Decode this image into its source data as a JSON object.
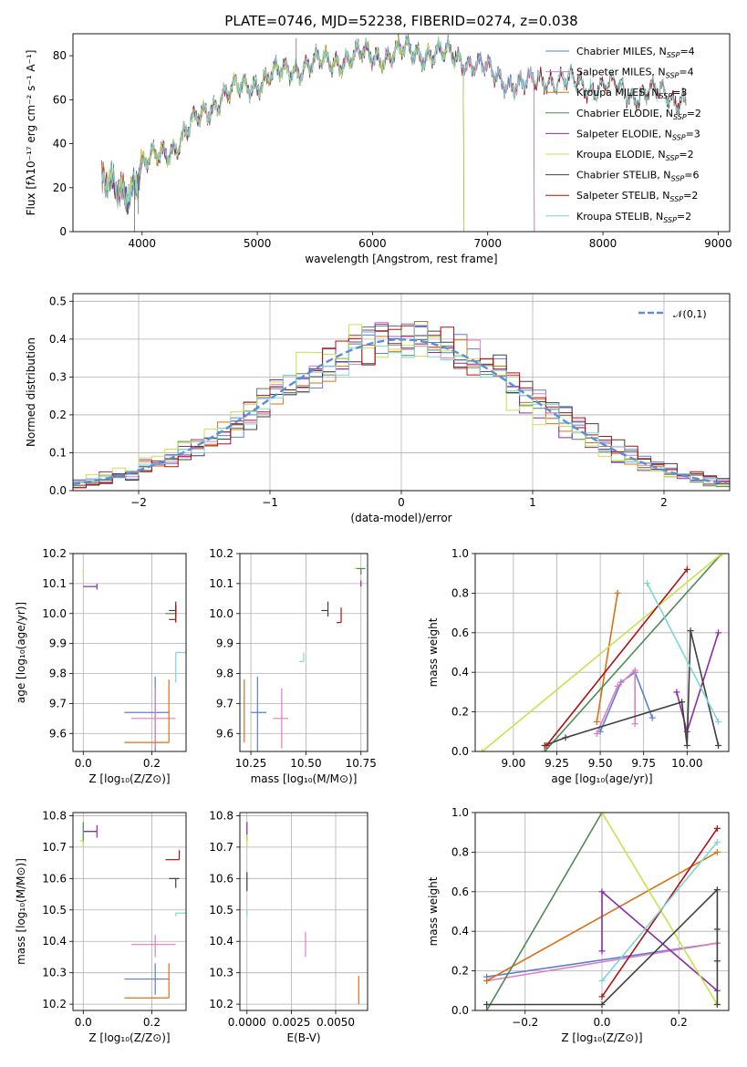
{
  "chart_data": [
    {
      "type": "line",
      "title": "PLATE=0746, MJD=52238, FIBERID=0274, z=0.038",
      "xlabel": "wavelength [Angstrom, rest frame]",
      "ylabel": "Flux [fλ10⁻¹⁷ erg cm⁻² s⁻¹ A⁻¹]",
      "xlim": [
        3400,
        9100
      ],
      "ylim": [
        0,
        90
      ],
      "xticks": [
        4000,
        5000,
        6000,
        7000,
        8000,
        9000
      ],
      "yticks": [
        0,
        20,
        40,
        60,
        80
      ],
      "legend_position": "upper-right",
      "spectrum_anchor_points": [
        [
          3650,
          22
        ],
        [
          3800,
          18
        ],
        [
          3900,
          20
        ],
        [
          4000,
          30
        ],
        [
          4100,
          33
        ],
        [
          4300,
          40
        ],
        [
          4500,
          52
        ],
        [
          4700,
          62
        ],
        [
          4900,
          66
        ],
        [
          5100,
          70
        ],
        [
          5300,
          74
        ],
        [
          5500,
          76
        ],
        [
          5700,
          78
        ],
        [
          5900,
          80
        ],
        [
          6100,
          80
        ],
        [
          6300,
          82
        ],
        [
          6500,
          81
        ],
        [
          6700,
          80
        ],
        [
          6900,
          76
        ],
        [
          7100,
          70
        ],
        [
          7300,
          66
        ],
        [
          7500,
          70
        ],
        [
          7700,
          68
        ],
        [
          7900,
          66
        ],
        [
          8100,
          66
        ],
        [
          8300,
          62
        ],
        [
          8500,
          63
        ],
        [
          8700,
          60
        ]
      ],
      "series": [
        {
          "name": "Chabrier MILES, N_SSP=4",
          "color": "#5b7fd6",
          "xmax": 7400
        },
        {
          "name": "Salpeter MILES, N_SSP=4",
          "color": "#e07fbf",
          "xmax": 7400
        },
        {
          "name": "Kroupa MILES, N_SSP=3",
          "color": "#d97216",
          "xmax": 7400
        },
        {
          "name": "Chabrier ELODIE, N_SSP=2",
          "color": "#4f8a57",
          "xmax": 6790
        },
        {
          "name": "Salpeter ELODIE, N_SSP=3",
          "color": "#8c2aa8",
          "xmax": 6790
        },
        {
          "name": "Kroupa ELODIE, N_SSP=2",
          "color": "#c9e24b",
          "xmax": 6790
        },
        {
          "name": "Chabrier STELIB, N_SSP=6",
          "color": "#404040",
          "xmax": 8800
        },
        {
          "name": "Salpeter STELIB, N_SSP=2",
          "color": "#b01010",
          "xmax": 8800
        },
        {
          "name": "Kroupa STELIB, N_SSP=2",
          "color": "#7dd6d6",
          "xmax": 8800
        }
      ]
    },
    {
      "type": "step-histogram",
      "xlabel": "(data-model)/error",
      "ylabel": "Normed distribution",
      "xlim": [
        -2.5,
        2.5
      ],
      "ylim": [
        0,
        0.52
      ],
      "xticks": [
        -2,
        -1,
        0,
        1,
        2
      ],
      "yticks": [
        0.0,
        0.1,
        0.2,
        0.3,
        0.4,
        0.5
      ],
      "grid": true,
      "legend": "𝒩(0,1)",
      "legend_position": "upper-right",
      "gaussian_color": "#5b8dd8"
    },
    {
      "type": "errorbar",
      "xlabel": "Z [log₁₀(Z/Z⊙)]",
      "ylabel": "age  [log₁₀(age/yr)]",
      "xlim": [
        -0.03,
        0.3
      ],
      "ylim": [
        9.54,
        10.2
      ],
      "xticks": [
        0.0,
        0.2
      ],
      "yticks": [
        9.6,
        9.7,
        9.8,
        9.9,
        10.0,
        10.1,
        10.2
      ],
      "grid": true,
      "points": [
        {
          "x": 0.21,
          "y": 9.67,
          "xerr": [
            0.09,
            0.04
          ],
          "yerr": [
            0.13,
            0.12
          ]
        },
        {
          "x": 0.21,
          "y": 9.65,
          "xerr": [
            0.07,
            0.06
          ],
          "yerr": [
            0.1,
            0.1
          ]
        },
        {
          "x": 0.25,
          "y": 9.57,
          "xerr": [
            0.13,
            0.0
          ],
          "yerr": [
            0.0,
            0.21
          ]
        },
        {
          "x": 0.27,
          "y": 10.0,
          "xerr": [
            0.03,
            0.0
          ],
          "yerr": [
            0.03,
            0.03
          ]
        },
        {
          "x": 0.04,
          "y": 10.09,
          "xerr": [
            0.04,
            0.0
          ],
          "yerr": [
            0.01,
            0.01
          ]
        },
        {
          "x": 0.0,
          "y": 10.15,
          "xerr": [
            0.0,
            0.0
          ],
          "yerr": [
            0.02,
            0.0
          ]
        },
        {
          "x": 0.27,
          "y": 10.01,
          "xerr": [
            0.02,
            0.0
          ],
          "yerr": [
            0.02,
            0.03
          ]
        },
        {
          "x": 0.27,
          "y": 9.98,
          "xerr": [
            0.02,
            0.0
          ],
          "yerr": [
            0.01,
            0.05
          ]
        },
        {
          "x": 0.27,
          "y": 9.87,
          "xerr": [
            0.0,
            0.03
          ],
          "yerr": [
            0.1,
            0.0
          ]
        }
      ]
    },
    {
      "type": "errorbar",
      "xlabel": "mass [log₁₀(M/M⊙)]",
      "xlim": [
        10.2,
        10.78
      ],
      "ylim": [
        9.54,
        10.2
      ],
      "xticks": [
        10.25,
        10.5,
        10.75
      ],
      "yticks": [
        9.6,
        9.7,
        9.8,
        9.9,
        10.0,
        10.1,
        10.2
      ],
      "grid": true,
      "points": [
        {
          "x": 10.28,
          "y": 9.67,
          "xerr": [
            0.03,
            0.04
          ],
          "yerr": [
            0.13,
            0.12
          ]
        },
        {
          "x": 10.39,
          "y": 9.65,
          "xerr": [
            0.04,
            0.03
          ],
          "yerr": [
            0.1,
            0.1
          ]
        },
        {
          "x": 10.22,
          "y": 9.57,
          "xerr": [
            0.0,
            0.0
          ],
          "yerr": [
            0.0,
            0.21
          ]
        },
        {
          "x": 10.75,
          "y": 10.15,
          "xerr": [
            0.02,
            0.02
          ],
          "yerr": [
            0.02,
            0.0
          ]
        },
        {
          "x": 10.75,
          "y": 10.1,
          "xerr": [
            0.0,
            0.0
          ],
          "yerr": [
            0.01,
            0.01
          ]
        },
        {
          "x": 10.73,
          "y": 10.15,
          "xerr": [
            0.01,
            0.0
          ],
          "yerr": [
            0.0,
            0.0
          ]
        },
        {
          "x": 10.6,
          "y": 10.01,
          "xerr": [
            0.03,
            0.0
          ],
          "yerr": [
            0.02,
            0.03
          ]
        },
        {
          "x": 10.66,
          "y": 9.97,
          "xerr": [
            0.02,
            0.0
          ],
          "yerr": [
            0.0,
            0.05
          ]
        },
        {
          "x": 10.49,
          "y": 9.84,
          "xerr": [
            0.02,
            0.0
          ],
          "yerr": [
            0.0,
            0.03
          ]
        }
      ]
    },
    {
      "type": "line",
      "xlabel": "age  [log₁₀(age/yr)]",
      "ylabel": "mass weight",
      "xlim": [
        8.78,
        10.24
      ],
      "ylim": [
        0,
        1
      ],
      "xticks": [
        9.0,
        9.25,
        9.5,
        9.75,
        10.0
      ],
      "yticks": [
        0.0,
        0.2,
        0.4,
        0.6,
        0.8,
        1.0
      ],
      "grid": true,
      "series": [
        {
          "color": "#5b7fd6",
          "x": [
            9.5,
            9.62,
            9.7,
            9.8
          ],
          "y": [
            0.1,
            0.35,
            0.4,
            0.17
          ]
        },
        {
          "color": "#e07fbf",
          "x": [
            9.48,
            9.6,
            9.7,
            9.7
          ],
          "y": [
            0.09,
            0.33,
            0.41,
            0.14
          ]
        },
        {
          "color": "#d97216",
          "x": [
            9.48,
            9.6
          ],
          "y": [
            0.15,
            0.8
          ]
        },
        {
          "color": "#4f8a57",
          "x": [
            9.18,
            10.2
          ],
          "y": [
            0.0,
            1.0
          ]
        },
        {
          "color": "#8c2aa8",
          "x": [
            9.94,
            10.0,
            10.18
          ],
          "y": [
            0.3,
            0.1,
            0.6
          ]
        },
        {
          "color": "#c9e24b",
          "x": [
            8.82,
            10.2
          ],
          "y": [
            0.0,
            1.0
          ]
        },
        {
          "color": "#404040",
          "x": [
            9.18,
            9.3,
            9.97,
            10.0,
            10.02,
            10.18
          ],
          "y": [
            0.03,
            0.07,
            0.25,
            0.03,
            0.61,
            0.03
          ]
        },
        {
          "color": "#b01010",
          "x": [
            9.19,
            10.0
          ],
          "y": [
            0.03,
            0.92
          ]
        },
        {
          "color": "#7dd6d6",
          "x": [
            9.77,
            10.18
          ],
          "y": [
            0.85,
            0.15
          ]
        }
      ]
    },
    {
      "type": "errorbar",
      "xlabel": "Z [log₁₀(Z/Z⊙)]",
      "ylabel": "mass [log₁₀(M/M⊙)]",
      "xlim": [
        -0.03,
        0.3
      ],
      "ylim": [
        10.18,
        10.81
      ],
      "xticks": [
        0.0,
        0.2
      ],
      "yticks": [
        10.2,
        10.3,
        10.4,
        10.5,
        10.6,
        10.7,
        10.8
      ],
      "grid": true,
      "points": [
        {
          "x": 0.21,
          "y": 10.28,
          "xerr": [
            0.09,
            0.04
          ],
          "yerr": [
            0.05,
            0.05
          ]
        },
        {
          "x": 0.21,
          "y": 10.39,
          "xerr": [
            0.07,
            0.06
          ],
          "yerr": [
            0.04,
            0.03
          ]
        },
        {
          "x": 0.25,
          "y": 10.22,
          "xerr": [
            0.13,
            0.0
          ],
          "yerr": [
            0.0,
            0.11
          ]
        },
        {
          "x": 0.0,
          "y": 10.75,
          "xerr": [
            0.0,
            0.04
          ],
          "yerr": [
            0.04,
            0.03
          ]
        },
        {
          "x": 0.04,
          "y": 10.75,
          "xerr": [
            0.04,
            0.0
          ],
          "yerr": [
            0.02,
            0.02
          ]
        },
        {
          "x": 0.0,
          "y": 10.72,
          "xerr": [
            0.01,
            0.0
          ],
          "yerr": [
            0.02,
            0.0
          ]
        },
        {
          "x": 0.27,
          "y": 10.6,
          "xerr": [
            0.02,
            0.01
          ],
          "yerr": [
            0.03,
            0.0
          ]
        },
        {
          "x": 0.28,
          "y": 10.66,
          "xerr": [
            0.04,
            0.0
          ],
          "yerr": [
            0.0,
            0.03
          ]
        },
        {
          "x": 0.27,
          "y": 10.49,
          "xerr": [
            0.0,
            0.03
          ],
          "yerr": [
            0.01,
            0.0
          ]
        }
      ]
    },
    {
      "type": "errorbar",
      "xlabel": "E(B-V)",
      "xlim": [
        -0.0004,
        0.0068
      ],
      "ylim": [
        10.18,
        10.81
      ],
      "xticks": [
        0.0,
        0.0025,
        0.005
      ],
      "tick_labels": [
        "0.0000",
        "0.0025",
        "0.0050"
      ],
      "yticks": [
        10.2,
        10.3,
        10.4,
        10.5,
        10.6,
        10.7,
        10.8
      ],
      "grid": true,
      "points": [
        {
          "x": 0.0,
          "y": 10.75,
          "xerr": [
            0.0,
            0.0
          ],
          "yerr": [
            0.03,
            0.03
          ]
        },
        {
          "x": 0.0,
          "y": 10.72,
          "xerr": [
            0.0,
            0.0
          ],
          "yerr": [
            0.02,
            0.02
          ]
        },
        {
          "x": 0.0,
          "y": 10.59,
          "xerr": [
            0.0,
            0.0
          ],
          "yerr": [
            0.03,
            0.03
          ]
        },
        {
          "x": 0.0,
          "y": 10.49,
          "xerr": [
            0.0,
            0.0
          ],
          "yerr": [
            0.01,
            0.01
          ]
        },
        {
          "x": 0.0033,
          "y": 10.39,
          "xerr": [
            0.0,
            0.0
          ],
          "yerr": [
            0.04,
            0.04
          ]
        },
        {
          "x": 0.0063,
          "y": 10.24,
          "xerr": [
            0.0,
            0.0
          ],
          "yerr": [
            0.04,
            0.05
          ]
        }
      ]
    },
    {
      "type": "line",
      "xlabel": "Z [log₁₀(Z/Z⊙)]",
      "ylabel": "mass weight",
      "xlim": [
        -0.33,
        0.33
      ],
      "ylim": [
        0,
        1
      ],
      "xticks": [
        -0.2,
        0.0,
        0.2
      ],
      "yticks": [
        0.0,
        0.2,
        0.4,
        0.6,
        0.8,
        1.0
      ],
      "grid": true,
      "series": [
        {
          "color": "#5b7fd6",
          "x": [
            -0.3,
            0.3
          ],
          "y": [
            0.17,
            0.34
          ]
        },
        {
          "color": "#e07fbf",
          "x": [
            -0.3,
            0.3
          ],
          "y": [
            0.15,
            0.34
          ]
        },
        {
          "color": "#d97216",
          "x": [
            -0.3,
            0.3
          ],
          "y": [
            0.15,
            0.8
          ]
        },
        {
          "color": "#4f8a57",
          "x": [
            -0.3,
            0.0
          ],
          "y": [
            0.0,
            1.0
          ]
        },
        {
          "color": "#8c2aa8",
          "x": [
            0.0,
            0.0,
            0.3
          ],
          "y": [
            0.3,
            0.6,
            0.1
          ]
        },
        {
          "color": "#c9e24b",
          "x": [
            0.0,
            0.3
          ],
          "y": [
            1.0,
            0.03
          ]
        },
        {
          "color": "#404040",
          "x": [
            -0.3,
            0.0,
            0.3,
            0.3,
            0.3,
            0.3
          ],
          "y": [
            0.03,
            0.03,
            0.61,
            0.41,
            0.25,
            0.03
          ]
        },
        {
          "color": "#b01010",
          "x": [
            0.0,
            0.3
          ],
          "y": [
            0.07,
            0.92
          ]
        },
        {
          "color": "#7dd6d6",
          "x": [
            0.0,
            0.3
          ],
          "y": [
            0.15,
            0.85
          ]
        }
      ]
    }
  ]
}
